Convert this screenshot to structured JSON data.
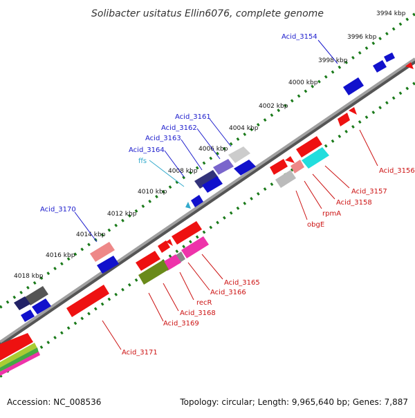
{
  "title": "Solibacter usitatus Ellin6076, complete genome",
  "colors": {
    "backbone": "#888888",
    "tick": "#1a7a1a",
    "fwd_label": "#1a1acc",
    "rev_label": "#cc1111",
    "ffs_label": "#33aacc"
  },
  "tick_labels": [
    "3994 kbp",
    "3996 kbp",
    "3998 kbp",
    "4000 kbp",
    "4002 kbp",
    "4004 kbp",
    "4006 kbp",
    "4008 kbp",
    "4010 kbp",
    "4012 kbp",
    "4014 kbp",
    "4016 kbp",
    "4018 kbp"
  ],
  "forward_labels": [
    "Acid_3154",
    "Acid_3161",
    "Acid_3162",
    "Acid_3163",
    "Acid_3164",
    "ffs",
    "Acid_3170"
  ],
  "reverse_labels": [
    "Acid_3156",
    "Acid_3157",
    "Acid_3158",
    "rpmA",
    "obgE",
    "Acid_3165",
    "Acid_3166",
    "recR",
    "Acid_3168",
    "Acid_3169",
    "Acid_3171"
  ],
  "footer": {
    "accession": "Accession: NC_008536",
    "topology": "Topology: circular; Length: 9,965,640 bp; Genes: 7,887"
  }
}
